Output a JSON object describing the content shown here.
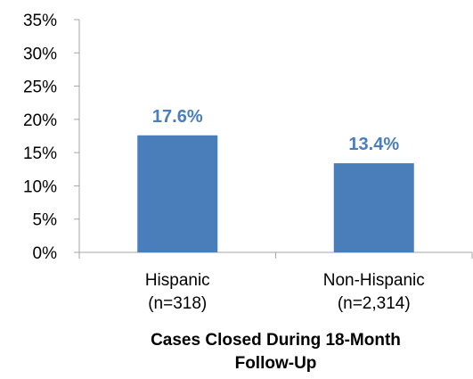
{
  "chart_data": {
    "type": "bar",
    "categories": [
      [
        "Hispanic",
        "(n=318)"
      ],
      [
        "Non-Hispanic",
        "(n=2,314)"
      ]
    ],
    "values": [
      17.6,
      13.4
    ],
    "data_labels": [
      "17.6%",
      "13.4%"
    ],
    "y_ticks": [
      0,
      5,
      10,
      15,
      20,
      25,
      30,
      35
    ],
    "y_tick_labels": [
      "0%",
      "5%",
      "10%",
      "15%",
      "20%",
      "25%",
      "30%",
      "35%"
    ],
    "ylim": [
      0,
      35
    ],
    "xlabel": [
      "Cases Closed During 18-Month",
      "Follow-Up"
    ],
    "ylabel": "",
    "title": "",
    "grid": false,
    "legend": "none",
    "bar_color": "#4a7ebb",
    "label_color": "#4a7ebb",
    "axis_color": "#a6a6a6"
  }
}
